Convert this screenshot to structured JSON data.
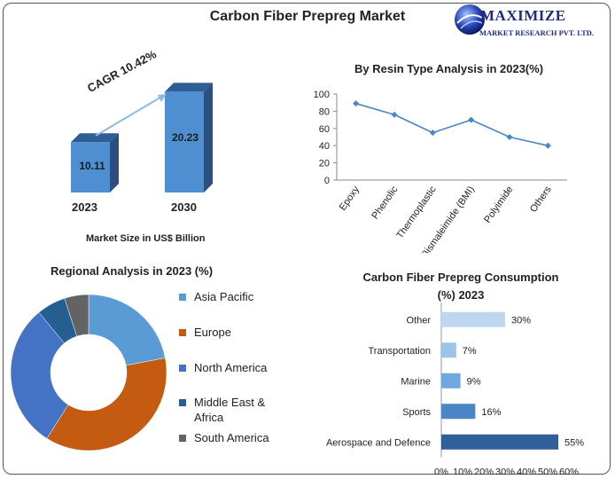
{
  "title": "Carbon Fiber Prepreg Market",
  "logo": {
    "line1": "MAXIMIZE",
    "line2": "MARKET RESEARCH PVT. LTD."
  },
  "market_size": {
    "caption": "Market Size in US$ Billion",
    "cagr_label": "CAGR 10.42%",
    "bars": [
      {
        "year": "2023",
        "value": "10.11"
      },
      {
        "year": "2030",
        "value": "20.23"
      }
    ]
  },
  "colors": {
    "blue_main": "#4e8fd2",
    "blue_side": "#2a4f80",
    "blue_top": "#2d5f96",
    "asia": "#5b9bd5",
    "europe": "#c55a11",
    "north_america": "#4472c4",
    "middle_east": "#255e91",
    "south_america": "#636363"
  },
  "chart_data": [
    {
      "type": "bar",
      "title": "",
      "categories": [
        "2023",
        "2030"
      ],
      "values": [
        10.11,
        20.23
      ],
      "xlabel": "Market Size in US$ Billion",
      "ylabel": ""
    },
    {
      "type": "line",
      "title": "By Resin Type Analysis in  2023(%)",
      "categories": [
        "Epoxy",
        "Phenolic",
        "Thermoplastic",
        "Bismaleimide (BMI)",
        "Polyimide",
        "Others"
      ],
      "values": [
        89,
        76,
        55,
        70,
        50,
        40
      ],
      "yticks": [
        "0",
        "20",
        "40",
        "60",
        "80",
        "100"
      ],
      "ylim": [
        0,
        100
      ],
      "grid": false
    },
    {
      "type": "pie",
      "title": "Regional Analysis in 2023 (%)",
      "labels": [
        "Asia Pacific",
        "Europe",
        "North America",
        "Middle East & Africa",
        "South America"
      ],
      "values": [
        22,
        37,
        30,
        6,
        5
      ],
      "legend": "right",
      "donut": true
    },
    {
      "type": "bar",
      "orientation": "horizontal",
      "title": "Carbon Fiber Prepreg Consumption (%) 2023",
      "categories": [
        "Other",
        "Transportation",
        "Marine",
        "Sports",
        "Aerospace and Defence"
      ],
      "values": [
        30,
        7,
        9,
        16,
        55
      ],
      "value_labels": [
        "30%",
        "7%",
        "9%",
        "16%",
        "55%"
      ],
      "xticks": [
        "0%",
        "10%",
        "20%",
        "30%",
        "40%",
        "50%",
        "60%"
      ],
      "xlim": [
        0,
        60
      ],
      "colors": [
        "#bdd7ee",
        "#9dc3e6",
        "#6fa8dc",
        "#4a86c5",
        "#2e5f98"
      ]
    }
  ]
}
